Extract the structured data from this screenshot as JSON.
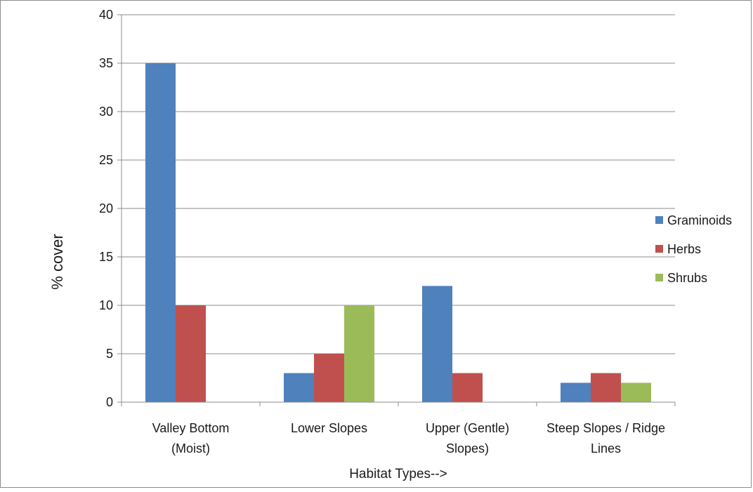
{
  "chart_data": {
    "type": "bar",
    "title": "",
    "xlabel": "Habitat Types-->",
    "ylabel": "% cover",
    "ylim": [
      0,
      40
    ],
    "yticks": [
      0,
      5,
      10,
      15,
      20,
      25,
      30,
      35,
      40
    ],
    "grid": true,
    "legend_position": "right",
    "categories": [
      [
        "Valley Bottom",
        "(Moist)"
      ],
      [
        "Lower Slopes"
      ],
      [
        "Upper (Gentle)",
        "Slopes)"
      ],
      [
        "Steep Slopes / Ridge",
        "Lines"
      ]
    ],
    "series": [
      {
        "name": "Graminoids",
        "color": "#4f81bd",
        "values": [
          35,
          3,
          12,
          2
        ]
      },
      {
        "name": "Herbs",
        "color": "#c0504d",
        "values": [
          10,
          5,
          3,
          3
        ]
      },
      {
        "name": "Shrubs",
        "color": "#9bbb59",
        "values": [
          0,
          10,
          0,
          2
        ]
      }
    ]
  }
}
